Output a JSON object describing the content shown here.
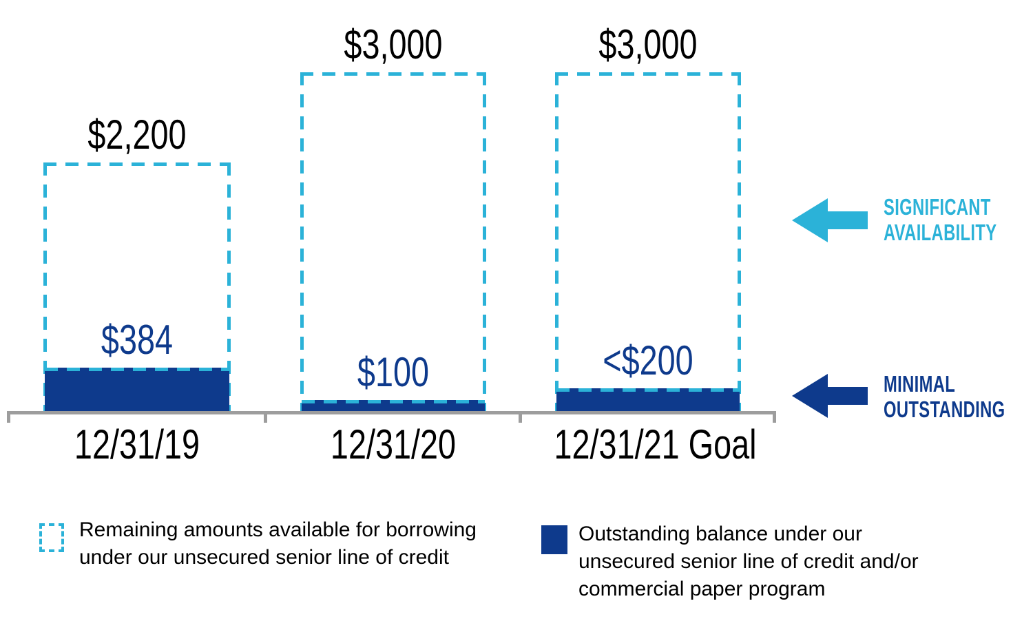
{
  "chart_data": {
    "type": "bar",
    "categories": [
      "12/31/19",
      "12/31/20",
      "12/31/21 Goal"
    ],
    "series": [
      {
        "name": "Remaining amounts available for borrowing under our unsecured senior line of credit",
        "style": "dashed-outline",
        "values": [
          2200,
          3000,
          3000
        ],
        "labels": [
          "$2,200",
          "$3,000",
          "$3,000"
        ]
      },
      {
        "name": "Outstanding balance under our unsecured senior line of credit and/or commercial paper program",
        "style": "solid-fill",
        "values": [
          384,
          100,
          200
        ],
        "labels": [
          "$384",
          "$100",
          "<$200"
        ]
      }
    ],
    "ylim": [
      0,
      3000
    ],
    "grid": false,
    "legend_position": "bottom"
  },
  "annotations": {
    "availability": {
      "line1": "SIGNIFICANT",
      "line2": "AVAILABILITY"
    },
    "outstanding": {
      "line1": "MINIMAL",
      "line2": "OUTSTANDING"
    }
  },
  "legend": {
    "available": "Remaining amounts available for borrowing under our unsecured senior line of credit",
    "outstanding": "Outstanding balance under our unsecured senior line of credit and/or commercial paper program"
  },
  "colors": {
    "cyan": "#2BB2D8",
    "navy": "#0E3A8C",
    "axis": "#9D9D9D",
    "label_text": "#000000"
  }
}
